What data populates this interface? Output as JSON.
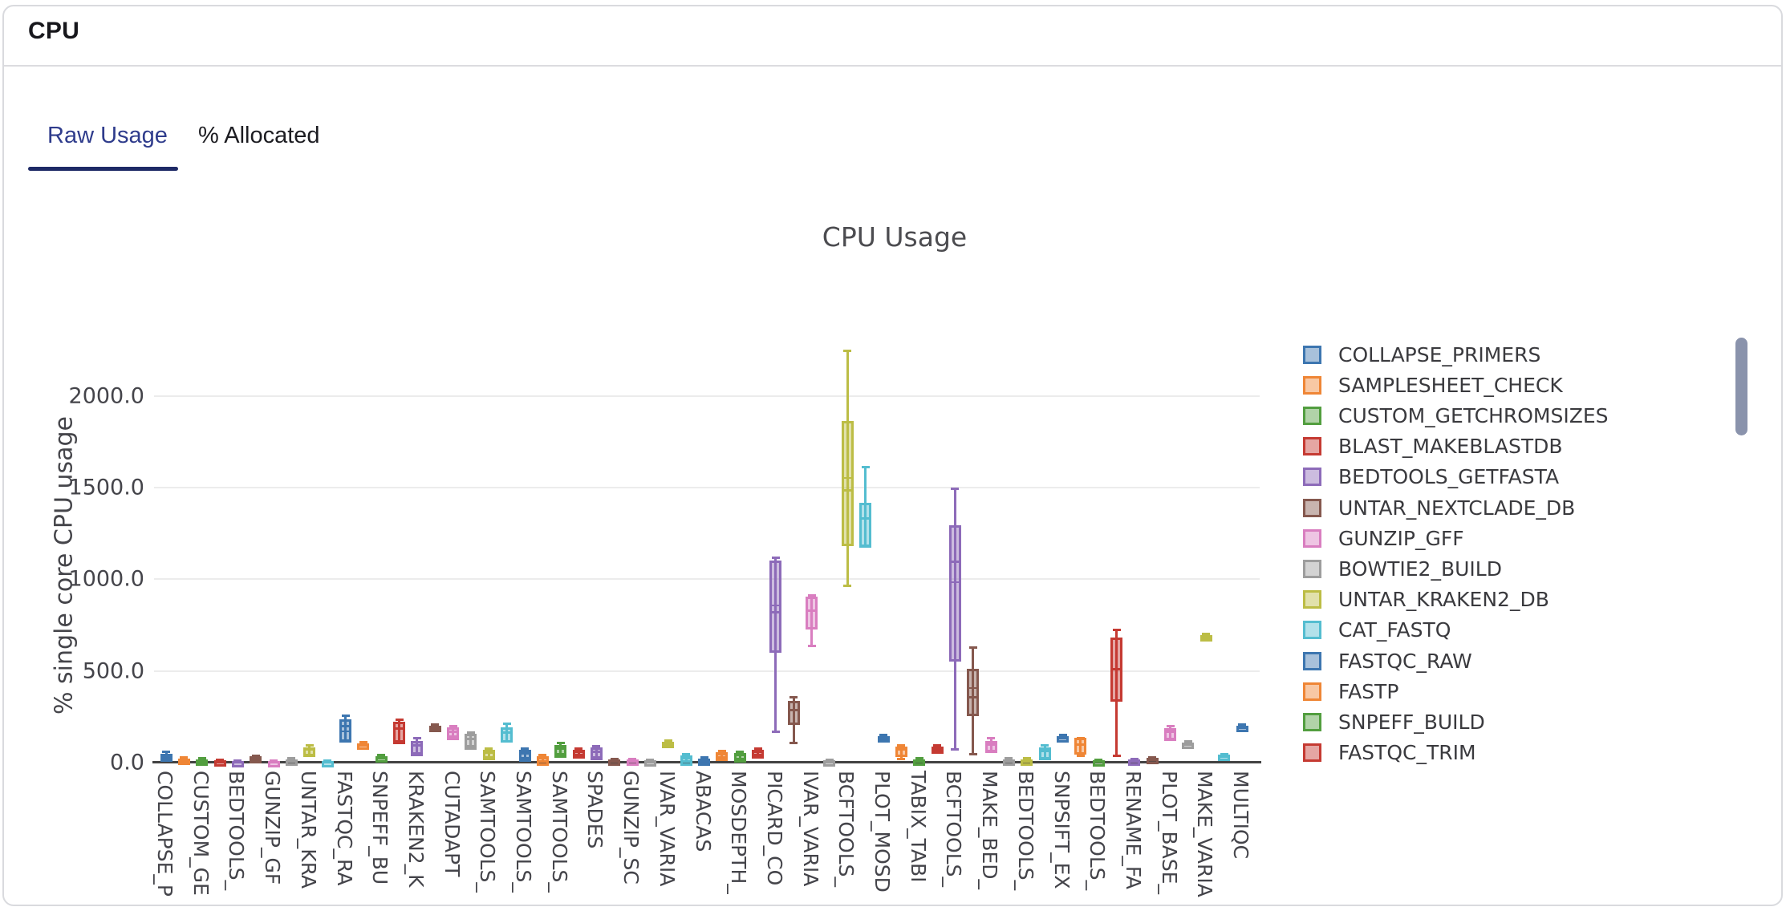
{
  "card": {
    "title": "CPU"
  },
  "tabs": [
    {
      "label": "Raw Usage",
      "active": true
    },
    {
      "label": "% Allocated",
      "active": false
    }
  ],
  "colors": {
    "tab_active_text": "#2f3c8c",
    "tab_underline": "#1e2a66",
    "inactive_text": "#1c1c21",
    "card_border": "#d9dade",
    "axis_line": "#424242",
    "gridline": "#ececec",
    "scrollbar_thumb": "#8a93ac",
    "chart_text": "#44444a"
  },
  "scrollbar": {
    "visible": true
  },
  "chart_data": {
    "type": "box",
    "title": "CPU Usage",
    "xlabel": "",
    "ylabel": "% single core CPU usage",
    "grid": true,
    "legend_position": "right",
    "ylim": [
      0,
      2700
    ],
    "yticks": [
      0,
      500,
      1000,
      1500,
      2000
    ],
    "ytick_labels": [
      "0.0",
      "500.0",
      "1000.0",
      "1500.0",
      "2000.0"
    ],
    "palette": [
      "#3d76b0",
      "#ef8636",
      "#529e3f",
      "#c53a32",
      "#8d6bb9",
      "#85584e",
      "#d97ec0",
      "#9d9d9d",
      "#bcbd45",
      "#54bdd0"
    ],
    "fill_alpha": 0.45,
    "legend": [
      "COLLAPSE_PRIMERS",
      "SAMPLESHEET_CHECK",
      "CUSTOM_GETCHROMSIZES",
      "BLAST_MAKEBLASTDB",
      "BEDTOOLS_GETFASTA",
      "UNTAR_NEXTCLADE_DB",
      "GUNZIP_GFF",
      "BOWTIE2_BUILD",
      "UNTAR_KRAKEN2_DB",
      "CAT_FASTQ",
      "FASTQC_RAW",
      "FASTP",
      "SNPEFF_BUILD",
      "FASTQC_TRIM"
    ],
    "xtick_labels": [
      "COLLAPSE_P",
      "CUSTOM_GE",
      "BEDTOOLS_",
      "GUNZIP_GF",
      "UNTAR_KRA",
      "FASTQC_RA",
      "SNPEFF_BU",
      "KRAKEN2_K",
      "CUTADAPT",
      "SAMTOOLS_",
      "SAMTOOLS_",
      "SAMTOOLS_",
      "SPADES",
      "GUNZIP_SC",
      "IVAR_VARIA",
      "ABACAS",
      "MOSDEPTH_",
      "PICARD_CO",
      "IVAR_VARIA",
      "BCFTOOLS_",
      "PLOT_MOSD",
      "TABIX_TABI",
      "BCFTOOLS_",
      "MAKE_BED_",
      "BEDTOOLS_",
      "SNPSIFT_EX",
      "BEDTOOLS_",
      "RENAME_FA",
      "PLOT_BASE_",
      "MAKE_VARIA",
      "MULTIQC"
    ],
    "boxes_note": "one box per slot; values are [whisker_low, q1, median, q3, whisker_high, (optional mean)] in % single core CPU usage; color cycles through palette by slot index",
    "boxes": [
      [
        22,
        30,
        38,
        48,
        58
      ],
      [
        8,
        14,
        18,
        24,
        30
      ],
      [
        4,
        9,
        13,
        18,
        24
      ],
      [
        3,
        6,
        9,
        13,
        17
      ],
      [
        2,
        3,
        5,
        8,
        11
      ],
      [
        16,
        22,
        27,
        33,
        38
      ],
      [
        2,
        4,
        6,
        9,
        12
      ],
      [
        5,
        9,
        13,
        18,
        23
      ],
      [
        40,
        57,
        70,
        83,
        95
      ],
      [
        2,
        4,
        6,
        9,
        12
      ],
      [
        119,
        134,
        197,
        236,
        258,
        170
      ],
      [
        92,
        98,
        102,
        107,
        112
      ],
      [
        22,
        27,
        31,
        36,
        41
      ],
      [
        115,
        127,
        185,
        223,
        236
      ],
      [
        50,
        61,
        93,
        119,
        135
      ],
      [
        188,
        193,
        197,
        202,
        207
      ],
      [
        140,
        149,
        170,
        192,
        200
      ],
      [
        90,
        97,
        127,
        157,
        165
      ],
      [
        30,
        39,
        55,
        70,
        78
      ],
      [
        118,
        135,
        163,
        192,
        210
      ],
      [
        25,
        31,
        50,
        70,
        78
      ],
      [
        5,
        9,
        22,
        35,
        40
      ],
      [
        45,
        53,
        75,
        96,
        105
      ],
      [
        40,
        48,
        58,
        70,
        78
      ],
      [
        30,
        39,
        60,
        83,
        90
      ],
      [
        8,
        11,
        13,
        16,
        19
      ],
      [
        8,
        11,
        13,
        16,
        19
      ],
      [
        4,
        7,
        9,
        12,
        15
      ],
      [
        100,
        105,
        109,
        114,
        119
      ],
      [
        5,
        9,
        25,
        39,
        45
      ],
      [
        4,
        8,
        13,
        22,
        28
      ],
      [
        30,
        35,
        46,
        57,
        62
      ],
      [
        20,
        26,
        40,
        53,
        60
      ],
      [
        40,
        48,
        58,
        70,
        78
      ],
      [
        170,
        625,
        822,
        1101,
        1119,
        857
      ],
      [
        105,
        232,
        288,
        337,
        358
      ],
      [
        638,
        752,
        828,
        905,
        913
      ],
      [
        4,
        7,
        10,
        13,
        16
      ],
      [
        966,
        1206,
        1486,
        1862,
        2247,
        1551
      ],
      [
        1184,
        1198,
        1333,
        1416,
        1613
      ],
      [
        130,
        136,
        141,
        146,
        152
      ],
      [
        20,
        57,
        72,
        87,
        95
      ],
      [
        8,
        11,
        15,
        19,
        23
      ],
      [
        68,
        74,
        80,
        86,
        92
      ],
      [
        70,
        577,
        1097,
        1294,
        1495,
        985
      ],
      [
        48,
        280,
        358,
        511,
        629,
        406
      ],
      [
        65,
        80,
        100,
        120,
        135
      ],
      [
        8,
        11,
        15,
        19,
        23
      ],
      [
        8,
        11,
        15,
        19,
        23
      ],
      [
        25,
        40,
        62,
        85,
        95
      ],
      [
        132,
        137,
        141,
        146,
        151
      ],
      [
        35,
        70,
        100,
        135,
        135
      ],
      [
        5,
        8,
        10,
        13,
        16
      ],
      [
        39,
        358,
        511,
        682,
        725
      ],
      [
        8,
        11,
        14,
        17,
        20
      ],
      [
        15,
        19,
        22,
        26,
        30
      ],
      [
        130,
        145,
        168,
        190,
        200
      ],
      [
        98,
        102,
        106,
        110,
        115
      ],
      [
        682,
        687,
        691,
        696,
        701
      ],
      [
        32,
        36,
        39,
        43,
        47
      ],
      [
        190,
        194,
        198,
        202,
        207
      ]
    ]
  }
}
